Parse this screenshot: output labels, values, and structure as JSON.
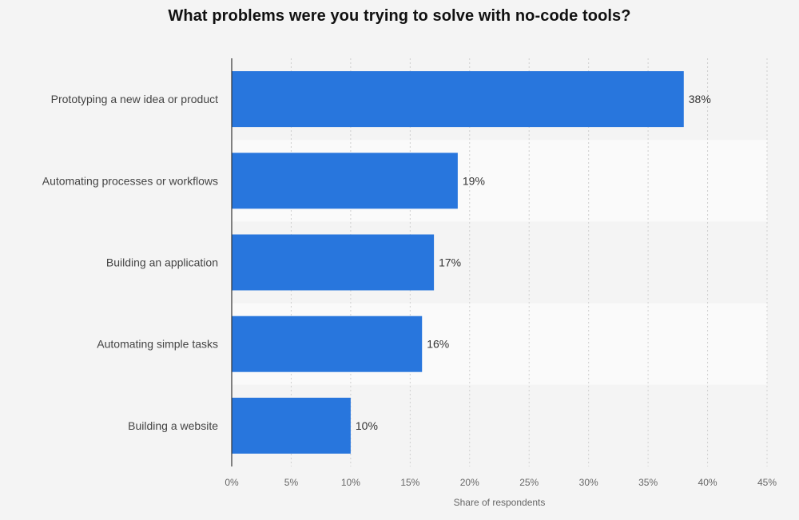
{
  "chart_data": {
    "type": "bar",
    "orientation": "horizontal",
    "title": "What problems were you trying to solve with no-code tools?",
    "xlabel": "Share of respondents",
    "ylabel": "",
    "categories": [
      "Prototyping a new idea or product",
      "Automating processes or workflows",
      "Building an application",
      "Automating simple tasks",
      "Building a website"
    ],
    "values": [
      38,
      19,
      17,
      16,
      10
    ],
    "value_labels": [
      "38%",
      "19%",
      "17%",
      "16%",
      "10%"
    ],
    "xlim": [
      0,
      45
    ],
    "ticks": [
      0,
      5,
      10,
      15,
      20,
      25,
      30,
      35,
      40,
      45
    ],
    "tick_labels": [
      "0%",
      "5%",
      "10%",
      "15%",
      "20%",
      "25%",
      "30%",
      "35%",
      "40%",
      "45%"
    ],
    "grid": true,
    "legend": "none",
    "bar_color": "#2876dd",
    "band_colors": [
      "#f4f4f4",
      "#fafafa"
    ]
  }
}
